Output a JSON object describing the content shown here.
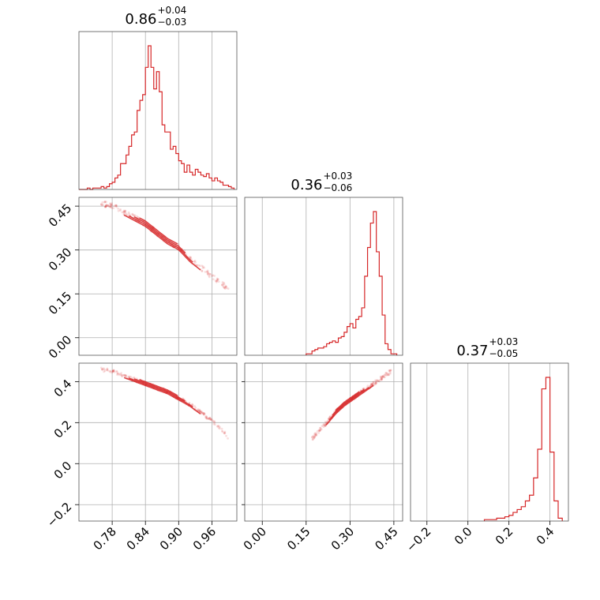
{
  "accent_color": "#d62728",
  "chart_data": {
    "type": "corner",
    "grid": true,
    "parameters": [
      {
        "title": {
          "value": "0.86",
          "plus": "+0.04",
          "minus": "−0.03"
        },
        "axis_range": [
          0.72,
          1.005
        ],
        "ticks": [
          0.78,
          0.84,
          0.9,
          0.96
        ],
        "tick_labels": [
          "0.78",
          "0.84",
          "0.90",
          "0.96"
        ]
      },
      {
        "title": {
          "value": "0.36",
          "plus": "+0.03",
          "minus": "−0.06"
        },
        "axis_range": [
          -0.06,
          0.48
        ],
        "ticks": [
          0.0,
          0.15,
          0.3,
          0.45
        ],
        "tick_labels": [
          "0.00",
          "0.15",
          "0.30",
          "0.45"
        ]
      },
      {
        "title": {
          "value": "0.37",
          "plus": "+0.03",
          "minus": "−0.05"
        },
        "axis_range": [
          -0.28,
          0.49
        ],
        "ticks": [
          -0.2,
          0.0,
          0.2,
          0.4
        ],
        "tick_labels": [
          "−0.2",
          "0.0",
          "0.2",
          "0.4"
        ]
      }
    ],
    "histograms": [
      {
        "bin_edges": [
          0.72,
          0.725,
          0.73,
          0.735,
          0.74,
          0.745,
          0.75,
          0.755,
          0.76,
          0.765,
          0.77,
          0.775,
          0.78,
          0.785,
          0.79,
          0.795,
          0.8,
          0.805,
          0.81,
          0.815,
          0.82,
          0.825,
          0.83,
          0.835,
          0.84,
          0.845,
          0.85,
          0.855,
          0.86,
          0.865,
          0.87,
          0.875,
          0.88,
          0.885,
          0.89,
          0.895,
          0.9,
          0.905,
          0.91,
          0.915,
          0.92,
          0.925,
          0.93,
          0.935,
          0.94,
          0.945,
          0.95,
          0.955,
          0.96,
          0.965,
          0.97,
          0.975,
          0.98,
          0.985,
          0.99,
          0.995,
          1.0
        ],
        "counts": [
          0,
          0,
          0,
          1,
          0,
          1,
          1,
          1,
          2,
          1,
          2,
          4,
          5,
          8,
          10,
          18,
          18,
          24,
          30,
          38,
          40,
          55,
          62,
          66,
          85,
          100,
          85,
          70,
          82,
          68,
          45,
          40,
          40,
          28,
          30,
          25,
          20,
          18,
          12,
          17,
          12,
          10,
          14,
          12,
          10,
          9,
          11,
          8,
          6,
          8,
          6,
          5,
          3,
          3,
          2,
          1
        ]
      },
      {
        "bin_edges": [
          0.15,
          0.16,
          0.17,
          0.18,
          0.19,
          0.2,
          0.21,
          0.22,
          0.23,
          0.24,
          0.25,
          0.26,
          0.27,
          0.28,
          0.29,
          0.3,
          0.31,
          0.32,
          0.33,
          0.34,
          0.35,
          0.36,
          0.37,
          0.38,
          0.39,
          0.4,
          0.41,
          0.42,
          0.43,
          0.44,
          0.45,
          0.46
        ],
        "counts": [
          1,
          1,
          3,
          4,
          5,
          5,
          6,
          8,
          9,
          10,
          9,
          12,
          13,
          16,
          20,
          22,
          19,
          25,
          27,
          33,
          55,
          75,
          92,
          100,
          72,
          55,
          28,
          8,
          4,
          1,
          1
        ]
      },
      {
        "bin_edges": [
          0.08,
          0.1,
          0.12,
          0.14,
          0.16,
          0.18,
          0.2,
          0.22,
          0.24,
          0.26,
          0.28,
          0.3,
          0.32,
          0.34,
          0.36,
          0.38,
          0.4,
          0.42,
          0.44,
          0.46
        ],
        "counts": [
          1,
          1,
          1,
          2,
          2,
          3,
          4,
          6,
          8,
          10,
          14,
          18,
          30,
          50,
          92,
          100,
          48,
          14,
          2
        ]
      }
    ],
    "scatter": [
      {
        "x_param": 0,
        "y_param": 1,
        "relation": "y = 0.43 - 1.45 * (x - 0.80)^1.22",
        "x_samples": [
          0.76,
          0.78,
          0.8,
          0.82,
          0.84,
          0.86,
          0.88,
          0.9,
          0.92,
          0.94,
          0.96,
          0.98,
          0.99
        ],
        "y_samples": [
          0.46,
          0.45,
          0.43,
          0.41,
          0.39,
          0.36,
          0.33,
          0.31,
          0.27,
          0.24,
          0.21,
          0.18,
          0.17
        ]
      },
      {
        "x_param": 0,
        "y_param": 2,
        "x_samples": [
          0.76,
          0.78,
          0.8,
          0.82,
          0.84,
          0.86,
          0.88,
          0.9,
          0.92,
          0.94,
          0.96,
          0.98,
          0.99
        ],
        "y_samples": [
          0.46,
          0.45,
          0.43,
          0.41,
          0.39,
          0.37,
          0.35,
          0.32,
          0.29,
          0.25,
          0.21,
          0.16,
          0.12
        ]
      },
      {
        "x_param": 1,
        "y_param": 2,
        "x_samples": [
          0.17,
          0.2,
          0.22,
          0.25,
          0.28,
          0.3,
          0.33,
          0.36,
          0.39,
          0.42,
          0.44
        ],
        "y_samples": [
          0.12,
          0.17,
          0.2,
          0.25,
          0.29,
          0.31,
          0.34,
          0.37,
          0.4,
          0.43,
          0.45
        ]
      }
    ]
  }
}
